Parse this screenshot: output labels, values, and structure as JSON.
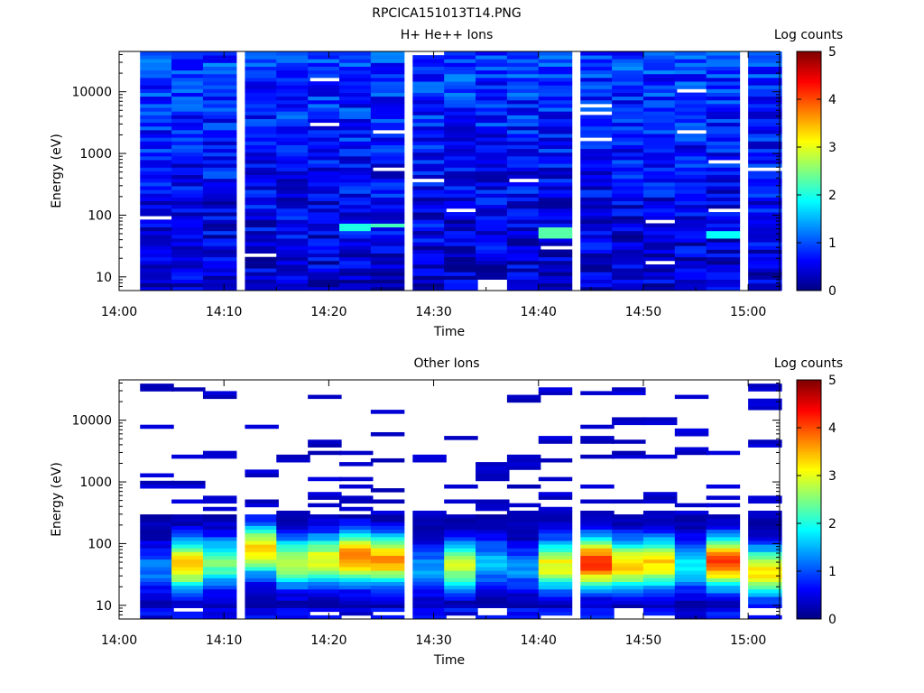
{
  "figure_title": "RPCICA151013T14.PNG",
  "chart_data": [
    {
      "type": "heatmap",
      "title": "H+ He++ Ions",
      "xlabel": "Time",
      "ylabel": "Energy (eV)",
      "yscale": "log",
      "xlim": [
        "14:00",
        "15:03"
      ],
      "ylim": [
        6,
        45000
      ],
      "x_ticks": [
        "14:00",
        "14:10",
        "14:20",
        "14:30",
        "14:40",
        "14:50",
        "15:00"
      ],
      "y_ticks": [
        "10",
        "100",
        "1000",
        "10000"
      ],
      "colorbar": {
        "label": "Log counts",
        "ticks": [
          "0",
          "1",
          "2",
          "3",
          "4",
          "5"
        ],
        "range": [
          0,
          5
        ],
        "colormap": "jet"
      },
      "time_bins": [
        "14:02",
        "14:05",
        "14:08",
        "14:12",
        "14:15",
        "14:18",
        "14:21",
        "14:24",
        "14:28",
        "14:31",
        "14:34",
        "14:37",
        "14:40",
        "14:44",
        "14:47",
        "14:50",
        "14:53",
        "14:56",
        "15:00"
      ],
      "profile": {
        "e_min": 6,
        "e_max": 45000,
        "low_energy_counts": 0.3,
        "high_energy_counts": 0.9,
        "typical_range": [
          0.3,
          1.8
        ]
      },
      "features": [
        {
          "time": "14:21",
          "energy_range": [
            55,
            75
          ],
          "counts": 2.0
        },
        {
          "time": "14:24",
          "energy_range": [
            60,
            75
          ],
          "counts": 2.2
        },
        {
          "time": "14:41",
          "energy_range": [
            45,
            60
          ],
          "counts": 2.3
        },
        {
          "time": "14:56",
          "energy_range": [
            40,
            55
          ],
          "counts": 1.9
        }
      ],
      "missing": [
        {
          "time": "14:34",
          "energy_range": [
            6,
            9
          ]
        },
        {
          "time": "14:12",
          "energy_range": [
            20,
            24
          ]
        },
        {
          "time": "14:40",
          "energy_range": [
            26,
            30
          ]
        }
      ]
    },
    {
      "type": "heatmap",
      "title": "Other Ions",
      "xlabel": "Time",
      "ylabel": "Energy (eV)",
      "yscale": "log",
      "xlim": [
        "14:00",
        "15:03"
      ],
      "ylim": [
        6,
        45000
      ],
      "x_ticks": [
        "14:00",
        "14:10",
        "14:20",
        "14:30",
        "14:40",
        "14:50",
        "15:00"
      ],
      "y_ticks": [
        "10",
        "100",
        "1000",
        "10000"
      ],
      "colorbar": {
        "label": "Log counts",
        "ticks": [
          "0",
          "1",
          "2",
          "3",
          "4",
          "5"
        ],
        "range": [
          0,
          5
        ],
        "colormap": "jet"
      },
      "time_bins": [
        "14:02",
        "14:05",
        "14:08",
        "14:12",
        "14:15",
        "14:18",
        "14:21",
        "14:24",
        "14:28",
        "14:31",
        "14:34",
        "14:37",
        "14:40",
        "14:44",
        "14:47",
        "14:50",
        "14:53",
        "14:56",
        "15:00"
      ],
      "peak_energy_eV": [
        40,
        45,
        50,
        80,
        50,
        55,
        60,
        55,
        40,
        45,
        50,
        40,
        45,
        50,
        45,
        50,
        45,
        50,
        35
      ],
      "peak_counts": [
        1.2,
        3.4,
        2.4,
        3.3,
        2.8,
        3.0,
        3.8,
        3.6,
        1.4,
        2.8,
        1.5,
        1.3,
        3.1,
        4.2,
        3.4,
        3.3,
        1.9,
        4.0,
        3.2
      ],
      "sparse_bands_eV": [
        [
          33000,
          8000,
          1250,
          900,
          200
        ],
        [
          32000,
          2600,
          900,
          480,
          280,
          210
        ],
        [
          26000,
          2800,
          510,
          360,
          200
        ],
        [
          8000,
          1350,
          440,
          260
        ],
        [
          2400,
          330,
          280
        ],
        [
          24000,
          4200,
          2900,
          1100,
          580,
          420,
          280
        ],
        [
          3000,
          1900,
          1150,
          860,
          520,
          360
        ],
        [
          14000,
          6000,
          2200,
          750,
          490,
          310
        ],
        [
          2400,
          310
        ],
        [
          5200,
          850,
          500,
          280
        ],
        [
          1800,
          1400,
          1150,
          480,
          390
        ],
        [
          22000,
          2400,
          1800,
          850,
          410,
          300
        ],
        [
          29000,
          4800,
          2200,
          1100,
          600,
          350
        ],
        [
          28000,
          8000,
          4800,
          2600,
          850,
          490,
          290
        ],
        [
          29000,
          9800,
          4600,
          2700,
          500,
          260
        ],
        [
          10000,
          2600,
          590,
          510,
          300
        ],
        [
          24000,
          6500,
          3200,
          2900,
          420,
          290
        ],
        [
          2900,
          870,
          560,
          420
        ],
        [
          33000,
          20000,
          17000,
          4300,
          520,
          330
        ]
      ]
    }
  ]
}
